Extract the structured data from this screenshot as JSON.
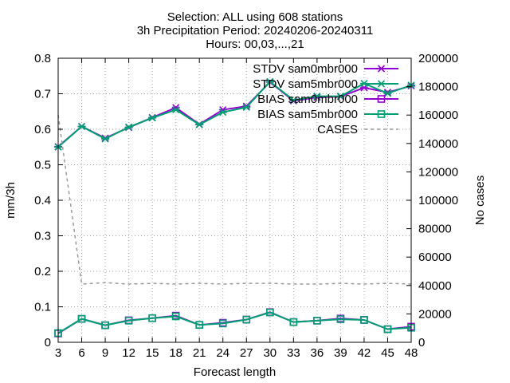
{
  "chart_data": {
    "type": "line",
    "title_lines": [
      "Selection: ALL using   608 stations",
      "3h Precipitation   Period: 20240206-20240311",
      "Hours: 00,03,...,21"
    ],
    "xlabel": "Forecast length",
    "ylabel": "mm/3h",
    "y2label": "No cases",
    "x": [
      3,
      6,
      9,
      12,
      15,
      18,
      21,
      24,
      27,
      30,
      33,
      36,
      39,
      42,
      45,
      48
    ],
    "xlim": [
      3,
      48
    ],
    "ylim": [
      0,
      0.8
    ],
    "y2lim": [
      0,
      200000
    ],
    "yticks": [
      "0",
      "0.1",
      "0.2",
      "0.3",
      "0.4",
      "0.5",
      "0.6",
      "0.7",
      "0.8"
    ],
    "y2ticks": [
      "0",
      "20000",
      "40000",
      "60000",
      "80000",
      "100000",
      "120000",
      "140000",
      "160000",
      "180000",
      "200000"
    ],
    "grid": true,
    "legend_position": "top-right",
    "series": [
      {
        "name": "STDV sam0mbr000",
        "axis": "y1",
        "color": "#9400d3",
        "marker": "x",
        "values": [
          0.551,
          0.608,
          0.575,
          0.605,
          0.633,
          0.661,
          0.614,
          0.655,
          0.665,
          0.733,
          0.68,
          0.69,
          0.692,
          0.717,
          0.704,
          0.722
        ]
      },
      {
        "name": "STDV sam5mbr000",
        "axis": "y1",
        "color": "#009e73",
        "marker": "x",
        "values": [
          0.55,
          0.608,
          0.573,
          0.606,
          0.632,
          0.655,
          0.613,
          0.648,
          0.662,
          0.734,
          0.682,
          0.693,
          0.693,
          0.729,
          0.701,
          0.724
        ]
      },
      {
        "name": "BIAS sam0mbr000",
        "axis": "y1",
        "color": "#9400d3",
        "marker": "square",
        "values": [
          0.025,
          0.066,
          0.048,
          0.062,
          0.068,
          0.075,
          0.049,
          0.055,
          0.064,
          0.085,
          0.057,
          0.061,
          0.067,
          0.063,
          0.037,
          0.044
        ]
      },
      {
        "name": "BIAS sam5mbr000",
        "axis": "y1",
        "color": "#009e73",
        "marker": "square",
        "values": [
          0.026,
          0.066,
          0.048,
          0.061,
          0.068,
          0.073,
          0.049,
          0.053,
          0.064,
          0.084,
          0.057,
          0.061,
          0.065,
          0.063,
          0.037,
          0.041
        ]
      },
      {
        "name": "CASES",
        "axis": "y2",
        "color": "#999999",
        "style": "dashed",
        "values": [
          160000,
          41000,
          42000,
          41000,
          41500,
          41000,
          41500,
          41000,
          41500,
          41500,
          41000,
          41000,
          41500,
          41000,
          41500,
          41000
        ]
      }
    ]
  }
}
